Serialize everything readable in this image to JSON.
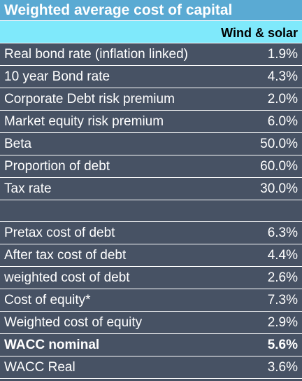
{
  "title": "Weighted average cost of capital",
  "column_header": "Wind & solar",
  "rows_top": [
    {
      "label": "Real bond rate (inflation linked)",
      "value": "1.9%"
    },
    {
      "label": "10 year Bond rate",
      "value": "4.3%"
    },
    {
      "label": "Corporate Debt risk premium",
      "value": "2.0%"
    },
    {
      "label": "Market equity risk premium",
      "value": "6.0%"
    },
    {
      "label": "Beta",
      "value": "50.0%"
    },
    {
      "label": "Proportion of debt",
      "value": "60.0%"
    },
    {
      "label": "Tax rate",
      "value": "30.0%"
    }
  ],
  "rows_bottom": [
    {
      "label": "Pretax cost of debt",
      "value": "6.3%"
    },
    {
      "label": "After tax cost of debt",
      "value": "4.4%"
    },
    {
      "label": "weighted cost of debt",
      "value": "2.6%"
    },
    {
      "label": "Cost of equity*",
      "value": "7.3%"
    },
    {
      "label": "Weighted cost of equity",
      "value": "2.9%"
    },
    {
      "label": "WACC nominal",
      "value": "5.6%"
    },
    {
      "label": "WACC Real",
      "value": "3.6%"
    }
  ]
}
